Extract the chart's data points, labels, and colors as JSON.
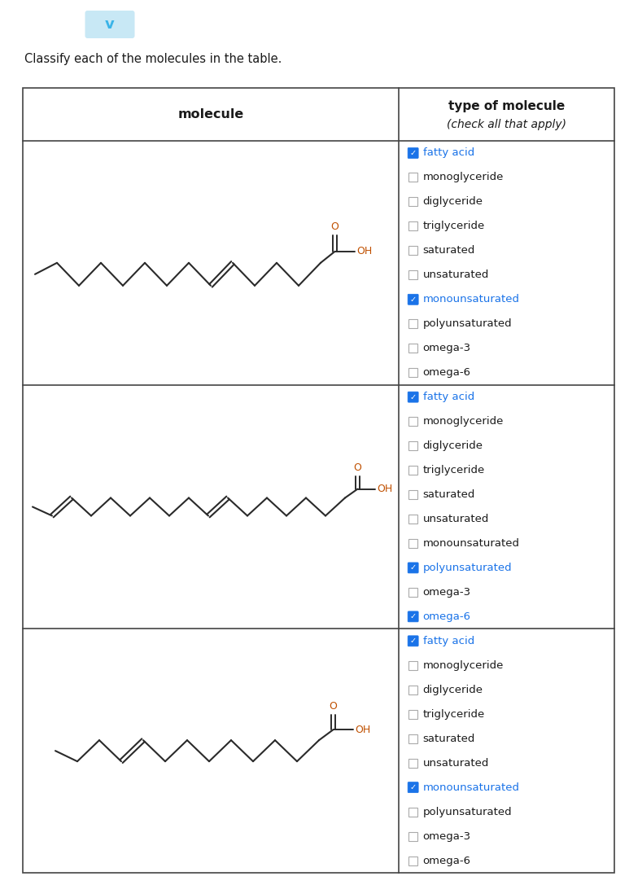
{
  "title_text": "Classify each of the molecules in the table.",
  "header_col1": "molecule",
  "header_col2_line1": "type of molecule",
  "header_col2_line2": "(check all that apply)",
  "checkbox_items": [
    "fatty acid",
    "monoglyceride",
    "diglyceride",
    "triglyceride",
    "saturated",
    "unsaturated",
    "monounsaturated",
    "polyunsaturated",
    "omega-3",
    "omega-6"
  ],
  "rows": [
    {
      "checked": [
        true,
        false,
        false,
        false,
        false,
        false,
        true,
        false,
        false,
        false
      ]
    },
    {
      "checked": [
        true,
        false,
        false,
        false,
        false,
        false,
        false,
        true,
        false,
        true
      ]
    },
    {
      "checked": [
        true,
        false,
        false,
        false,
        false,
        false,
        true,
        false,
        false,
        false
      ]
    }
  ],
  "checked_color": "#1a73e8",
  "text_color": "#1a1a1a",
  "border_color": "#444444",
  "bg_color": "#ffffff",
  "title_color": "#1a1a1a",
  "fig_width": 7.73,
  "fig_height": 10.87,
  "chevron_color": "#3ab4e8",
  "chevron_bg": "#c8e8f5",
  "O_color": "#c05000",
  "OH_color": "#c05000"
}
